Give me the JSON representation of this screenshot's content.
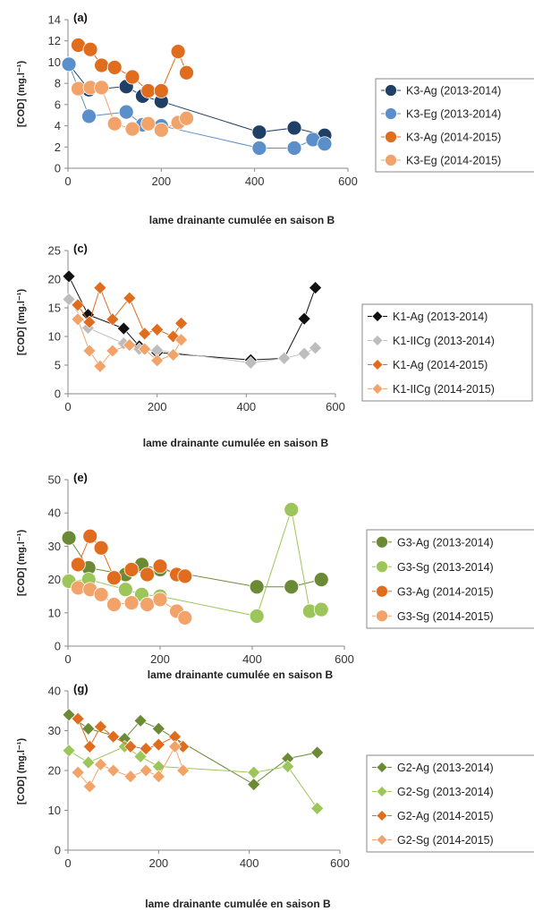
{
  "chart_data": [
    {
      "type": "line",
      "panel_label": "(a)",
      "marker": "circle",
      "ylabel": "[COD] (mg.l⁻¹)",
      "xlabel": "lame drainante cumulée en saison B",
      "xlim": [
        0,
        600
      ],
      "ylim": [
        0,
        14
      ],
      "xticks": [
        "0",
        "200",
        "400",
        "600"
      ],
      "yticks": [
        "0",
        "2",
        "4",
        "6",
        "8",
        "10",
        "12",
        "14"
      ],
      "legend_position": "right",
      "series": [
        {
          "name": "K3-Ag (2013-2014)",
          "color": "#1f3f66",
          "x": [
            2,
            45,
            125,
            160,
            200,
            410,
            485,
            550
          ],
          "y": [
            9.8,
            7.4,
            7.7,
            6.8,
            6.3,
            3.4,
            3.8,
            3.1
          ]
        },
        {
          "name": "K3-Eg (2013-2014)",
          "color": "#5b8fc9",
          "x": [
            2,
            45,
            125,
            160,
            200,
            410,
            485,
            525,
            550
          ],
          "y": [
            9.8,
            4.9,
            5.3,
            4.1,
            4.0,
            1.9,
            1.9,
            2.7,
            2.3
          ]
        },
        {
          "name": "K3-Ag (2014-2015)",
          "color": "#e06c1e",
          "x": [
            22,
            48,
            72,
            100,
            138,
            172,
            200,
            236,
            254
          ],
          "y": [
            11.6,
            11.2,
            9.7,
            9.5,
            8.6,
            7.3,
            7.3,
            11.0,
            9.0
          ]
        },
        {
          "name": "K3-Eg (2014-2015)",
          "color": "#f2a36a",
          "x": [
            22,
            48,
            72,
            100,
            138,
            172,
            200,
            236,
            254
          ],
          "y": [
            7.5,
            7.6,
            7.6,
            4.2,
            3.7,
            4.2,
            3.6,
            4.3,
            4.7
          ]
        }
      ]
    },
    {
      "type": "line",
      "panel_label": "(c)",
      "marker": "diamond",
      "ylabel": "[COD] (mg.l⁻¹)",
      "xlabel": "lame drainante cumulée en saison B",
      "xlim": [
        0,
        600
      ],
      "ylim": [
        0,
        25
      ],
      "xticks": [
        "0",
        "200",
        "400",
        "600"
      ],
      "yticks": [
        "0",
        "5",
        "10",
        "15",
        "20",
        "25"
      ],
      "legend_position": "right",
      "series": [
        {
          "name": "K1-Ag (2013-2014)",
          "color": "#111111",
          "x": [
            2,
            45,
            125,
            160,
            200,
            410,
            485,
            530,
            555
          ],
          "y": [
            20.5,
            13.8,
            11.4,
            8.3,
            7.2,
            5.9,
            6.2,
            13.1,
            18.5
          ]
        },
        {
          "name": "K1-IICg (2013-2014)",
          "color": "#bdbdbd",
          "x": [
            2,
            45,
            125,
            160,
            200,
            410,
            485,
            530,
            555
          ],
          "y": [
            16.5,
            11.5,
            8.8,
            7.8,
            7.6,
            5.4,
            6.2,
            7.0,
            8.0
          ]
        },
        {
          "name": "K1-Ag (2014-2015)",
          "color": "#e06c1e",
          "x": [
            22,
            48,
            72,
            100,
            138,
            172,
            200,
            236,
            254
          ],
          "y": [
            15.5,
            12.5,
            18.5,
            13.0,
            16.7,
            10.5,
            11.2,
            10.0,
            12.3
          ]
        },
        {
          "name": "K1-IICg (2014-2015)",
          "color": "#f2a36a",
          "x": [
            22,
            48,
            72,
            100,
            138,
            172,
            200,
            236,
            254
          ],
          "y": [
            13.0,
            7.5,
            4.8,
            7.5,
            8.5,
            7.8,
            5.8,
            6.8,
            9.4
          ]
        }
      ]
    },
    {
      "type": "line",
      "panel_label": "(e)",
      "marker": "circle",
      "ylabel": "[COD] (mg.l⁻¹)",
      "xlabel": "lame drainante cumulée en saison B",
      "xlim": [
        0,
        600
      ],
      "ylim": [
        0,
        50
      ],
      "xticks": [
        "0",
        "200",
        "400",
        "600"
      ],
      "yticks": [
        "0",
        "10",
        "20",
        "30",
        "40",
        "50"
      ],
      "legend_position": "right",
      "series": [
        {
          "name": "G3-Ag (2013-2014)",
          "color": "#6b8a35",
          "x": [
            2,
            45,
            125,
            160,
            200,
            410,
            485,
            550
          ],
          "y": [
            32.5,
            23.5,
            21.5,
            24.5,
            23.0,
            17.8,
            17.8,
            20.0
          ]
        },
        {
          "name": "G3-Sg (2013-2014)",
          "color": "#9cc65a",
          "x": [
            2,
            45,
            125,
            160,
            200,
            410,
            485,
            525,
            550
          ],
          "y": [
            19.5,
            20.0,
            17.0,
            15.5,
            15.0,
            9.0,
            41.0,
            10.5,
            11.0
          ]
        },
        {
          "name": "G3-Ag (2014-2015)",
          "color": "#e06c1e",
          "x": [
            22,
            48,
            72,
            100,
            138,
            172,
            200,
            236,
            254
          ],
          "y": [
            24.5,
            33.0,
            29.5,
            20.5,
            23.0,
            21.5,
            24.0,
            21.5,
            21.0
          ]
        },
        {
          "name": "G3-Sg (2014-2015)",
          "color": "#f2a36a",
          "x": [
            22,
            48,
            72,
            100,
            138,
            172,
            200,
            236,
            254
          ],
          "y": [
            17.5,
            17.0,
            15.5,
            12.5,
            13.0,
            12.5,
            14.0,
            10.5,
            8.5
          ]
        }
      ]
    },
    {
      "type": "line",
      "panel_label": "(g)",
      "marker": "diamond",
      "ylabel": "[COD] (mg.l⁻¹)",
      "xlabel": "lame drainante cumulée en saison B",
      "xlim": [
        0,
        600
      ],
      "ylim": [
        0,
        40
      ],
      "xticks": [
        "0",
        "200",
        "400",
        "600"
      ],
      "yticks": [
        "0",
        "10",
        "20",
        "30",
        "40"
      ],
      "legend_position": "right",
      "series": [
        {
          "name": "G2-Ag (2013-2014)",
          "color": "#6b8a35",
          "x": [
            2,
            45,
            125,
            160,
            200,
            410,
            485,
            550
          ],
          "y": [
            34.0,
            30.5,
            28.0,
            32.5,
            30.5,
            16.5,
            23.0,
            24.5
          ]
        },
        {
          "name": "G2-Sg (2013-2014)",
          "color": "#9cc65a",
          "x": [
            2,
            45,
            125,
            160,
            200,
            410,
            485,
            550
          ],
          "y": [
            25.0,
            22.0,
            26.0,
            23.5,
            21.0,
            19.5,
            21.0,
            10.5
          ]
        },
        {
          "name": "G2-Ag (2014-2015)",
          "color": "#e06c1e",
          "x": [
            22,
            48,
            72,
            100,
            138,
            172,
            200,
            236,
            254
          ],
          "y": [
            33.0,
            26.0,
            31.0,
            28.5,
            26.0,
            25.5,
            26.5,
            28.5,
            26.0
          ]
        },
        {
          "name": "G2-Sg (2014-2015)",
          "color": "#f2a36a",
          "x": [
            22,
            48,
            72,
            100,
            138,
            172,
            200,
            236,
            254
          ],
          "y": [
            19.5,
            16.0,
            21.5,
            20.0,
            18.5,
            20.0,
            18.5,
            26.0,
            20.0
          ]
        }
      ]
    }
  ]
}
